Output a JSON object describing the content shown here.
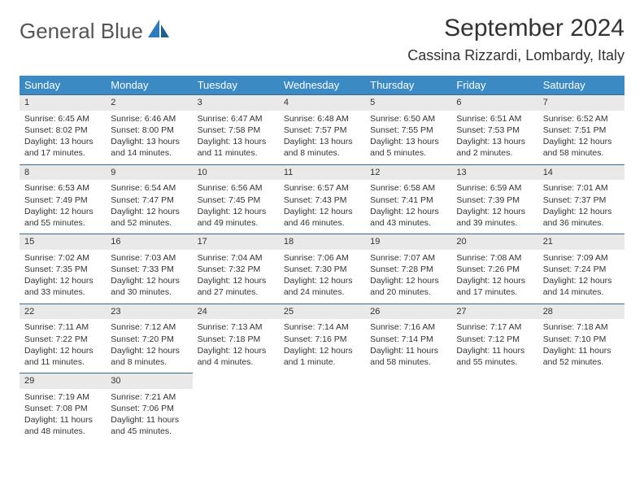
{
  "brand": {
    "line1": "General",
    "line2": "Blue"
  },
  "title": "September 2024",
  "location": "Cassina Rizzardi, Lombardy, Italy",
  "colors": {
    "header_bg": "#3b8ac4",
    "header_text": "#ffffff",
    "daynum_bg": "#e9e9e9",
    "daynum_border": "#3b6a8f",
    "brand_gray": "#555555",
    "brand_blue": "#2b7bbf"
  },
  "weekdays": [
    "Sunday",
    "Monday",
    "Tuesday",
    "Wednesday",
    "Thursday",
    "Friday",
    "Saturday"
  ],
  "weeks": [
    [
      {
        "n": "1",
        "sr": "Sunrise: 6:45 AM",
        "ss": "Sunset: 8:02 PM",
        "d1": "Daylight: 13 hours",
        "d2": "and 17 minutes."
      },
      {
        "n": "2",
        "sr": "Sunrise: 6:46 AM",
        "ss": "Sunset: 8:00 PM",
        "d1": "Daylight: 13 hours",
        "d2": "and 14 minutes."
      },
      {
        "n": "3",
        "sr": "Sunrise: 6:47 AM",
        "ss": "Sunset: 7:58 PM",
        "d1": "Daylight: 13 hours",
        "d2": "and 11 minutes."
      },
      {
        "n": "4",
        "sr": "Sunrise: 6:48 AM",
        "ss": "Sunset: 7:57 PM",
        "d1": "Daylight: 13 hours",
        "d2": "and 8 minutes."
      },
      {
        "n": "5",
        "sr": "Sunrise: 6:50 AM",
        "ss": "Sunset: 7:55 PM",
        "d1": "Daylight: 13 hours",
        "d2": "and 5 minutes."
      },
      {
        "n": "6",
        "sr": "Sunrise: 6:51 AM",
        "ss": "Sunset: 7:53 PM",
        "d1": "Daylight: 13 hours",
        "d2": "and 2 minutes."
      },
      {
        "n": "7",
        "sr": "Sunrise: 6:52 AM",
        "ss": "Sunset: 7:51 PM",
        "d1": "Daylight: 12 hours",
        "d2": "and 58 minutes."
      }
    ],
    [
      {
        "n": "8",
        "sr": "Sunrise: 6:53 AM",
        "ss": "Sunset: 7:49 PM",
        "d1": "Daylight: 12 hours",
        "d2": "and 55 minutes."
      },
      {
        "n": "9",
        "sr": "Sunrise: 6:54 AM",
        "ss": "Sunset: 7:47 PM",
        "d1": "Daylight: 12 hours",
        "d2": "and 52 minutes."
      },
      {
        "n": "10",
        "sr": "Sunrise: 6:56 AM",
        "ss": "Sunset: 7:45 PM",
        "d1": "Daylight: 12 hours",
        "d2": "and 49 minutes."
      },
      {
        "n": "11",
        "sr": "Sunrise: 6:57 AM",
        "ss": "Sunset: 7:43 PM",
        "d1": "Daylight: 12 hours",
        "d2": "and 46 minutes."
      },
      {
        "n": "12",
        "sr": "Sunrise: 6:58 AM",
        "ss": "Sunset: 7:41 PM",
        "d1": "Daylight: 12 hours",
        "d2": "and 43 minutes."
      },
      {
        "n": "13",
        "sr": "Sunrise: 6:59 AM",
        "ss": "Sunset: 7:39 PM",
        "d1": "Daylight: 12 hours",
        "d2": "and 39 minutes."
      },
      {
        "n": "14",
        "sr": "Sunrise: 7:01 AM",
        "ss": "Sunset: 7:37 PM",
        "d1": "Daylight: 12 hours",
        "d2": "and 36 minutes."
      }
    ],
    [
      {
        "n": "15",
        "sr": "Sunrise: 7:02 AM",
        "ss": "Sunset: 7:35 PM",
        "d1": "Daylight: 12 hours",
        "d2": "and 33 minutes."
      },
      {
        "n": "16",
        "sr": "Sunrise: 7:03 AM",
        "ss": "Sunset: 7:33 PM",
        "d1": "Daylight: 12 hours",
        "d2": "and 30 minutes."
      },
      {
        "n": "17",
        "sr": "Sunrise: 7:04 AM",
        "ss": "Sunset: 7:32 PM",
        "d1": "Daylight: 12 hours",
        "d2": "and 27 minutes."
      },
      {
        "n": "18",
        "sr": "Sunrise: 7:06 AM",
        "ss": "Sunset: 7:30 PM",
        "d1": "Daylight: 12 hours",
        "d2": "and 24 minutes."
      },
      {
        "n": "19",
        "sr": "Sunrise: 7:07 AM",
        "ss": "Sunset: 7:28 PM",
        "d1": "Daylight: 12 hours",
        "d2": "and 20 minutes."
      },
      {
        "n": "20",
        "sr": "Sunrise: 7:08 AM",
        "ss": "Sunset: 7:26 PM",
        "d1": "Daylight: 12 hours",
        "d2": "and 17 minutes."
      },
      {
        "n": "21",
        "sr": "Sunrise: 7:09 AM",
        "ss": "Sunset: 7:24 PM",
        "d1": "Daylight: 12 hours",
        "d2": "and 14 minutes."
      }
    ],
    [
      {
        "n": "22",
        "sr": "Sunrise: 7:11 AM",
        "ss": "Sunset: 7:22 PM",
        "d1": "Daylight: 12 hours",
        "d2": "and 11 minutes."
      },
      {
        "n": "23",
        "sr": "Sunrise: 7:12 AM",
        "ss": "Sunset: 7:20 PM",
        "d1": "Daylight: 12 hours",
        "d2": "and 8 minutes."
      },
      {
        "n": "24",
        "sr": "Sunrise: 7:13 AM",
        "ss": "Sunset: 7:18 PM",
        "d1": "Daylight: 12 hours",
        "d2": "and 4 minutes."
      },
      {
        "n": "25",
        "sr": "Sunrise: 7:14 AM",
        "ss": "Sunset: 7:16 PM",
        "d1": "Daylight: 12 hours",
        "d2": "and 1 minute."
      },
      {
        "n": "26",
        "sr": "Sunrise: 7:16 AM",
        "ss": "Sunset: 7:14 PM",
        "d1": "Daylight: 11 hours",
        "d2": "and 58 minutes."
      },
      {
        "n": "27",
        "sr": "Sunrise: 7:17 AM",
        "ss": "Sunset: 7:12 PM",
        "d1": "Daylight: 11 hours",
        "d2": "and 55 minutes."
      },
      {
        "n": "28",
        "sr": "Sunrise: 7:18 AM",
        "ss": "Sunset: 7:10 PM",
        "d1": "Daylight: 11 hours",
        "d2": "and 52 minutes."
      }
    ],
    [
      {
        "n": "29",
        "sr": "Sunrise: 7:19 AM",
        "ss": "Sunset: 7:08 PM",
        "d1": "Daylight: 11 hours",
        "d2": "and 48 minutes."
      },
      {
        "n": "30",
        "sr": "Sunrise: 7:21 AM",
        "ss": "Sunset: 7:06 PM",
        "d1": "Daylight: 11 hours",
        "d2": "and 45 minutes."
      },
      null,
      null,
      null,
      null,
      null
    ]
  ]
}
